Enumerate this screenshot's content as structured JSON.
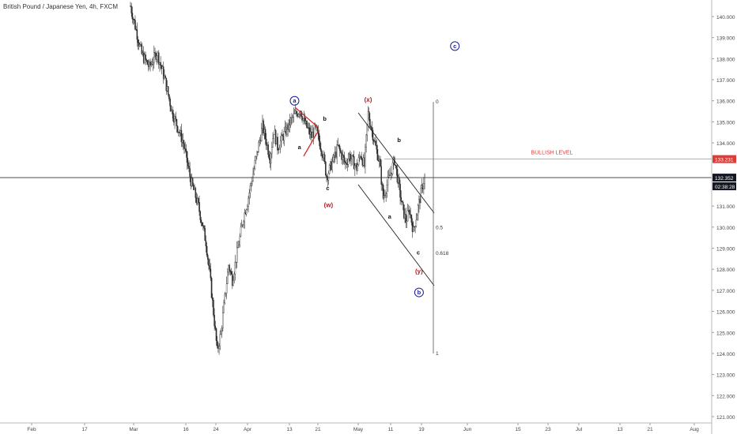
{
  "chart_data": {
    "type": "candlestick",
    "title": "British Pound / Japanese Yen, 4h, FXCM",
    "ylim": [
      121.0,
      140.5
    ],
    "y_ticks": [
      121.0,
      122.0,
      123.0,
      124.0,
      125.0,
      126.0,
      127.0,
      128.0,
      129.0,
      130.0,
      131.0,
      134.0,
      135.0,
      136.0,
      137.0,
      138.0,
      139.0,
      140.0
    ],
    "y_tick_labels": [
      "121.000",
      "122.000",
      "123.000",
      "124.000",
      "125.000",
      "126.000",
      "127.000",
      "128.000",
      "129.000",
      "130.000",
      "131.000",
      "134.000",
      "135.000",
      "136.000",
      "137.000",
      "138.000",
      "139.000",
      "140.000"
    ],
    "x_ticks": [
      "Feb",
      "17",
      "Mar",
      "16",
      "24",
      "Apr",
      "13",
      "21",
      "May",
      "11",
      "19",
      "Jun",
      "15",
      "23",
      "Jul",
      "13",
      "21",
      "Aug"
    ],
    "current_price": {
      "value": 132.352,
      "label": "132.352",
      "countdown": "02:38:28"
    },
    "bullish_level": {
      "value": 133.231,
      "label": "133.231",
      "text": "BULLISH LEVEL"
    },
    "price_path": [
      [
        140.5,
        0
      ],
      [
        138.2,
        3
      ],
      [
        137.6,
        5
      ],
      [
        138.3,
        7
      ],
      [
        137.1,
        9
      ],
      [
        135.5,
        11
      ],
      [
        134.0,
        14
      ],
      [
        132.2,
        16
      ],
      [
        131.0,
        18
      ],
      [
        129.3,
        20
      ],
      [
        127.8,
        21
      ],
      [
        124.1,
        23
      ],
      [
        125.0,
        24
      ],
      [
        128.2,
        26
      ],
      [
        127.5,
        27
      ],
      [
        130.5,
        30
      ],
      [
        131.2,
        31
      ],
      [
        133.0,
        33
      ],
      [
        134.8,
        35
      ],
      [
        133.3,
        37
      ],
      [
        134.6,
        38
      ],
      [
        133.8,
        39
      ],
      [
        134.5,
        41
      ],
      [
        135.2,
        43
      ],
      [
        135.6,
        45
      ],
      [
        135.0,
        46
      ],
      [
        134.3,
        48
      ],
      [
        134.7,
        49
      ],
      [
        133.5,
        51
      ],
      [
        132.4,
        52
      ],
      [
        133.3,
        54
      ],
      [
        133.8,
        55
      ],
      [
        133.0,
        57
      ],
      [
        133.4,
        58
      ],
      [
        132.8,
        60
      ],
      [
        133.5,
        61
      ],
      [
        132.9,
        62
      ],
      [
        135.4,
        63
      ],
      [
        133.8,
        65
      ],
      [
        133.1,
        66
      ],
      [
        131.4,
        67
      ],
      [
        132.0,
        68
      ],
      [
        133.2,
        70
      ],
      [
        132.1,
        71
      ],
      [
        131.0,
        72
      ],
      [
        130.3,
        73
      ],
      [
        130.8,
        74
      ],
      [
        129.8,
        75
      ],
      [
        130.7,
        76
      ],
      [
        131.6,
        77
      ],
      [
        132.4,
        78
      ]
    ],
    "annotations": {
      "circled": [
        {
          "text": "a",
          "price": 136.0,
          "idx": 43.5,
          "color": "#1a1a9e"
        },
        {
          "text": "b",
          "price": 126.9,
          "idx": 76.5,
          "color": "#1a1a9e"
        },
        {
          "text": "c",
          "price": 138.6,
          "idx": 86.0,
          "color": "#1a1a9e"
        }
      ],
      "red_labels": [
        {
          "text": "(w)",
          "price": 130.95,
          "idx": 52.5
        },
        {
          "text": "(x)",
          "price": 135.95,
          "idx": 63.0
        },
        {
          "text": "(y)",
          "price": 127.8,
          "idx": 76.5
        }
      ],
      "black_labels": [
        {
          "text": "a",
          "price": 133.7,
          "idx": 44.8
        },
        {
          "text": "b",
          "price": 135.05,
          "idx": 51.5
        },
        {
          "text": "c",
          "price": 131.75,
          "idx": 52.3
        },
        {
          "text": "a",
          "price": 130.4,
          "idx": 68.7
        },
        {
          "text": "b",
          "price": 134.05,
          "idx": 71.2
        },
        {
          "text": "c",
          "price": 128.7,
          "idx": 76.3
        }
      ],
      "fib": [
        {
          "text": "0",
          "price": 135.95
        },
        {
          "text": "0.5",
          "price": 129.97
        },
        {
          "text": "0.618",
          "price": 128.75
        },
        {
          "text": "1",
          "price": 124.0
        }
      ]
    }
  }
}
